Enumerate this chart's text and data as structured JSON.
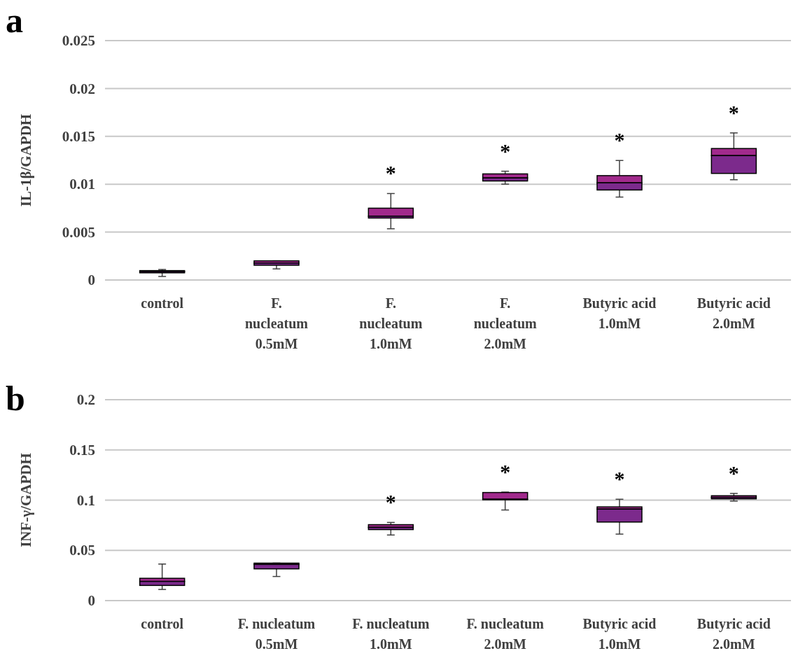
{
  "chart_data": [
    {
      "type": "box",
      "title": "a",
      "ylabel": "IL-1β/GAPDH",
      "categories": [
        "control",
        "F. nucleatum 0.5mM",
        "F. nucleatum 1.0mM",
        "F. nucleatum 2.0mM",
        "Butyric acid 1.0mM",
        "Butyric acid 2.0mM"
      ],
      "ylim": [
        0,
        0.025
      ],
      "yticks": [
        0,
        0.005,
        0.01,
        0.015,
        0.02,
        0.025
      ],
      "grid": "y",
      "colors": [
        "#7c2a8c",
        "#7c2a8c",
        "#7c2a8c",
        "#7c2a8c",
        "#7c2a8c",
        "#7c2a8c"
      ],
      "boxes": [
        {
          "low": 0.00037,
          "q1": 0.00075,
          "median": 0.00088,
          "q3": 0.00098,
          "high": 0.0011
        },
        {
          "low": 0.00116,
          "q1": 0.00154,
          "median": 0.00177,
          "q3": 0.002,
          "high": 0.002
        },
        {
          "low": 0.00535,
          "q1": 0.00647,
          "median": 0.00666,
          "q3": 0.0075,
          "high": 0.00903
        },
        {
          "low": 0.01001,
          "q1": 0.01034,
          "median": 0.01066,
          "q3": 0.01108,
          "high": 0.01136
        },
        {
          "low": 0.00866,
          "q1": 0.0094,
          "median": 0.01015,
          "q3": 0.0109,
          "high": 0.01248
        },
        {
          "low": 0.01047,
          "q1": 0.01113,
          "median": 0.01299,
          "q3": 0.01373,
          "high": 0.01536
        }
      ],
      "annotations": [
        "*",
        "*",
        "*",
        "*"
      ]
    },
    {
      "type": "box",
      "title": "b",
      "ylabel": "INF-γ/GAPDH",
      "categories": [
        "control",
        "F. nucleatum 0.5mM",
        "F. nucleatum 1.0mM",
        "F. nucleatum 2.0mM",
        "Butyric acid 1.0mM",
        "Butyric acid 2.0mM"
      ],
      "ylim": [
        0,
        0.2
      ],
      "yticks": [
        0,
        0.05,
        0.1,
        0.15,
        0.2
      ],
      "grid": "y",
      "colors": [
        "#7c2a8c",
        "#7c2a8c",
        "#7c2a8c",
        "#7c2a8c",
        "#7c2a8c",
        "#7c2a8c"
      ],
      "boxes": [
        {
          "low": 0.0111,
          "q1": 0.0151,
          "median": 0.0191,
          "q3": 0.0222,
          "high": 0.0364
        },
        {
          "low": 0.024,
          "q1": 0.0316,
          "median": 0.036,
          "q3": 0.0373,
          "high": 0.0373
        },
        {
          "low": 0.0653,
          "q1": 0.0707,
          "median": 0.0729,
          "q3": 0.0756,
          "high": 0.0778
        },
        {
          "low": 0.0902,
          "q1": 0.1004,
          "median": 0.1009,
          "q3": 0.1076,
          "high": 0.108
        },
        {
          "low": 0.0662,
          "q1": 0.0782,
          "median": 0.0911,
          "q3": 0.0933,
          "high": 0.1009
        },
        {
          "low": 0.0991,
          "q1": 0.1013,
          "median": 0.1027,
          "q3": 0.1044,
          "high": 0.1067
        }
      ],
      "annotations": [
        "*",
        "*",
        "*",
        "*"
      ]
    }
  ]
}
